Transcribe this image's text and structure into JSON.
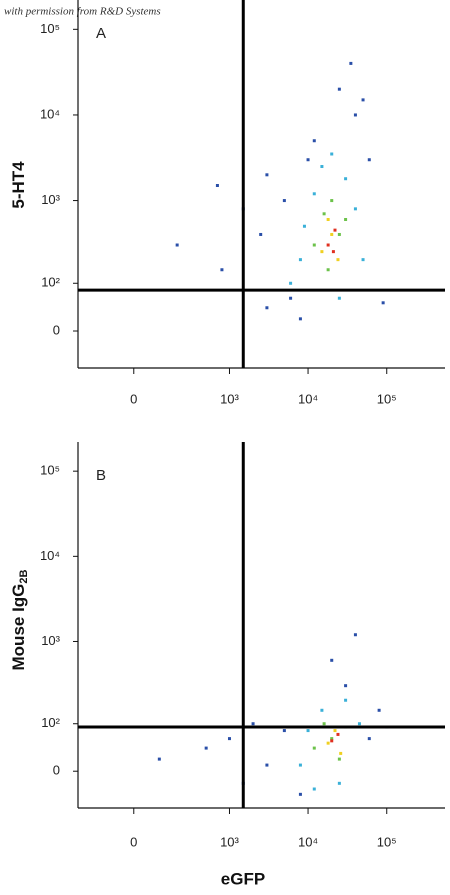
{
  "watermark": "with permission from R&D Systems",
  "chart_data": [
    {
      "type": "scatter",
      "panel": "A",
      "ylabel": "5-HT4",
      "xlim": [
        -300,
        550000
      ],
      "ylim": [
        -70,
        220000
      ],
      "xticks": [
        0,
        {
          "value": 1000,
          "label": "10³"
        },
        {
          "value": 10000,
          "label": "10⁴"
        },
        {
          "value": 100000,
          "label": "10⁵"
        }
      ],
      "yticks": [
        0,
        {
          "value": 100,
          "label": "10²"
        },
        {
          "value": 1000,
          "label": "10³"
        },
        {
          "value": 10000,
          "label": "10⁴"
        },
        {
          "value": 100000,
          "label": "10⁵"
        }
      ],
      "gates": {
        "x": 1500,
        "y": 80
      },
      "series": [
        {
          "color": "#2a4fa8",
          "x": [
            200,
            800,
            1500,
            3000,
            5000,
            8000,
            12000,
            40000,
            60000,
            90000,
            3000,
            6000,
            25000,
            35000,
            50000,
            700,
            2500,
            10000
          ],
          "values": [
            300,
            150,
            800,
            2000,
            1000,
            20,
            5000,
            10000,
            3000,
            50,
            40,
            60,
            20000,
            40000,
            15000,
            1500,
            400,
            3000
          ]
        },
        {
          "color": "#3ab0d8",
          "x": [
            6000,
            9000,
            12000,
            15000,
            30000,
            40000,
            50000,
            8000,
            20000,
            25000
          ],
          "values": [
            100,
            500,
            1200,
            2500,
            1800,
            800,
            200,
            200,
            3500,
            60
          ]
        },
        {
          "color": "#6cc24a",
          "x": [
            12000,
            16000,
            20000,
            25000,
            30000,
            18000
          ],
          "values": [
            300,
            700,
            1000,
            400,
            600,
            150
          ]
        },
        {
          "color": "#f0d020",
          "x": [
            15000,
            20000,
            24000,
            18000
          ],
          "values": [
            250,
            400,
            200,
            600
          ]
        },
        {
          "color": "#e03020",
          "x": [
            18000,
            21000,
            22000
          ],
          "values": [
            300,
            250,
            450
          ]
        }
      ]
    },
    {
      "type": "scatter",
      "panel": "B",
      "ylabel": "Mouse IgG",
      "ylabel_subscript": "2B",
      "xlabel": "eGFP",
      "xlim": [
        -300,
        550000
      ],
      "ylim": [
        -70,
        220000
      ],
      "xticks": [
        0,
        {
          "value": 1000,
          "label": "10³"
        },
        {
          "value": 10000,
          "label": "10⁴"
        },
        {
          "value": 100000,
          "label": "10⁵"
        }
      ],
      "yticks": [
        0,
        {
          "value": 100,
          "label": "10²"
        },
        {
          "value": 1000,
          "label": "10³"
        },
        {
          "value": 10000,
          "label": "10⁴"
        },
        {
          "value": 100000,
          "label": "10⁵"
        }
      ],
      "gates": {
        "x": 1500,
        "y": 90
      },
      "series": [
        {
          "color": "#2a4fa8",
          "x": [
            100,
            500,
            1000,
            1500,
            3000,
            5000,
            8000,
            60000,
            80000,
            30000,
            40000,
            100000,
            20000,
            2000
          ],
          "values": [
            20,
            40,
            60,
            -20,
            10,
            80,
            -40,
            60,
            150,
            300,
            1200,
            90,
            600,
            100
          ]
        },
        {
          "color": "#3ab0d8",
          "x": [
            8000,
            10000,
            15000,
            30000,
            45000,
            12000,
            25000
          ],
          "values": [
            10,
            80,
            150,
            200,
            100,
            -30,
            -20
          ]
        },
        {
          "color": "#6cc24a",
          "x": [
            12000,
            16000,
            20000,
            30000,
            25000
          ],
          "values": [
            40,
            100,
            60,
            90,
            20
          ]
        },
        {
          "color": "#f0d020",
          "x": [
            18000,
            22000,
            26000
          ],
          "values": [
            50,
            80,
            30
          ]
        },
        {
          "color": "#e03020",
          "x": [
            20000,
            24000
          ],
          "values": [
            55,
            70
          ]
        }
      ]
    }
  ]
}
